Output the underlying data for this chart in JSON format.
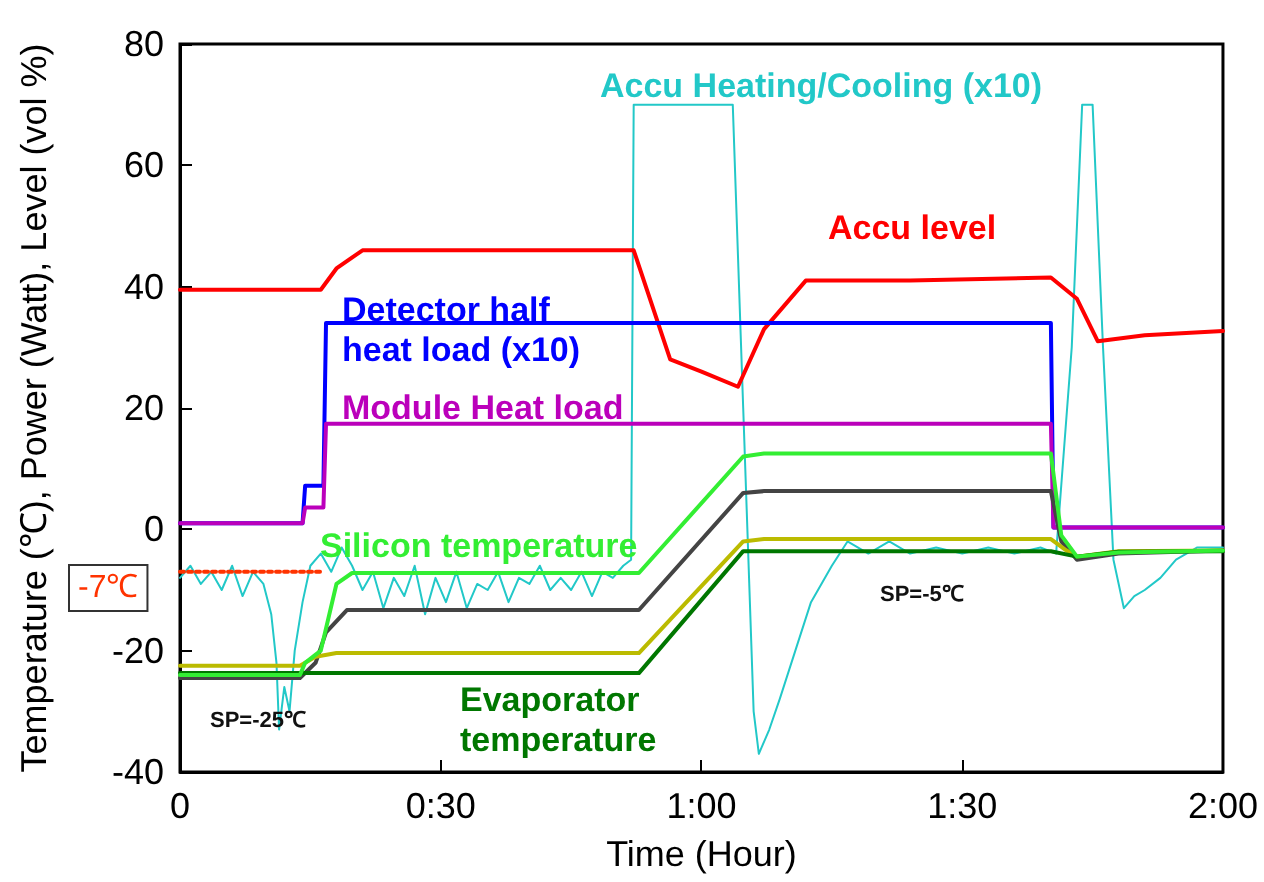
{
  "chart_data": {
    "type": "line",
    "xlabel": "Time (Hour)",
    "ylabel": "Temperature (℃), Power (Watt), Level (vol %)",
    "xlim": [
      0,
      2
    ],
    "ylim": [
      -40,
      80
    ],
    "xticks": [
      0,
      {
        "value": 0.5,
        "label": "0:30"
      },
      {
        "value": 1,
        "label": "1:00"
      },
      {
        "value": 1.5,
        "label": "1:30"
      },
      {
        "value": 2,
        "label": "2:00"
      }
    ],
    "yticks": [
      -40,
      -20,
      0,
      20,
      40,
      60,
      80
    ],
    "grid": false,
    "legend": false,
    "marker": "none",
    "line_style": "solid",
    "annotations": [
      "SP=-25℃",
      "SP=-5℃",
      "-7℃"
    ],
    "series": [
      {
        "name": "Accu Heating/Cooling (x10)",
        "color": "#22c8c8",
        "x": [
          0,
          0.02,
          0.04,
          0.06,
          0.08,
          0.1,
          0.12,
          0.14,
          0.16,
          0.175,
          0.185,
          0.19,
          0.2,
          0.21,
          0.22,
          0.235,
          0.25,
          0.27,
          0.29,
          0.31,
          0.33,
          0.35,
          0.37,
          0.39,
          0.41,
          0.43,
          0.45,
          0.47,
          0.49,
          0.51,
          0.53,
          0.55,
          0.57,
          0.59,
          0.61,
          0.63,
          0.65,
          0.67,
          0.69,
          0.71,
          0.73,
          0.75,
          0.77,
          0.79,
          0.81,
          0.83,
          0.85,
          0.865,
          0.87,
          1.06,
          1.08,
          1.1,
          1.11,
          1.13,
          1.15,
          1.18,
          1.21,
          1.25,
          1.28,
          1.32,
          1.36,
          1.4,
          1.45,
          1.5,
          1.55,
          1.6,
          1.65,
          1.68,
          1.71,
          1.73,
          1.75,
          1.77,
          1.79,
          1.81,
          1.83,
          1.85,
          1.88,
          1.91,
          1.95,
          2
        ],
        "values": [
          -8,
          -6,
          -9,
          -7,
          -10,
          -6,
          -11,
          -7,
          -9,
          -14,
          -22,
          -33,
          -26,
          -30,
          -20,
          -12,
          -6,
          -4,
          -7,
          -3,
          -6,
          -10,
          -7,
          -13,
          -8,
          -11,
          -6,
          -14,
          -8,
          -12,
          -7,
          -13,
          -9,
          -10,
          -7,
          -12,
          -8,
          -9,
          -6,
          -10,
          -8,
          -10,
          -7,
          -11,
          -7,
          -8,
          -6,
          -5,
          70,
          70,
          20,
          -30,
          -37,
          -33,
          -28,
          -20,
          -12,
          -6,
          -2,
          -4,
          -2,
          -4,
          -3,
          -4,
          -3,
          -4,
          -3,
          -4,
          30,
          70,
          70,
          30,
          -5,
          -13,
          -11,
          -10,
          -8,
          -5,
          -3,
          -3
        ]
      },
      {
        "color": "#ff3300",
        "line_style": "dotted",
        "x": [
          0,
          0.27
        ],
        "values": [
          -7,
          -7
        ]
      },
      {
        "name": "Accu level",
        "color": "#ff0000",
        "x": [
          0,
          0.27,
          0.3,
          0.35,
          0.6,
          0.87,
          0.94,
          1.0,
          1.07,
          1.12,
          1.2,
          1.4,
          1.67,
          1.72,
          1.76,
          1.85,
          2
        ],
        "values": [
          39.5,
          39.5,
          43,
          46,
          46,
          46,
          28,
          26,
          23.5,
          33,
          41,
          41,
          41.5,
          38,
          31,
          32,
          32.7
        ]
      },
      {
        "name": "Detector half heat load (x10)",
        "color": "#0000ff",
        "x": [
          0,
          0.235,
          0.24,
          0.275,
          0.28,
          1.67,
          1.675,
          2
        ],
        "values": [
          1,
          1,
          7.2,
          7.2,
          34,
          34,
          0.3,
          0.3
        ]
      },
      {
        "name": "Module Heat load",
        "color": "#bb00bb",
        "x": [
          0,
          0.235,
          0.24,
          0.275,
          0.28,
          1.67,
          1.675,
          2
        ],
        "values": [
          1,
          1,
          3.6,
          3.6,
          17.4,
          17.4,
          0.3,
          0.3
        ]
      },
      {
        "color": "#444444",
        "x": [
          0,
          0.23,
          0.26,
          0.28,
          0.32,
          0.88,
          1.08,
          1.12,
          1.67,
          1.69,
          1.72,
          1.8,
          2
        ],
        "values": [
          -24.5,
          -24.5,
          -22,
          -17,
          -13.3,
          -13.3,
          6,
          6.3,
          6.3,
          -2,
          -5,
          -4,
          -3.5
        ]
      },
      {
        "color": "#bbbb00",
        "x": [
          0,
          0.23,
          0.26,
          0.3,
          0.88,
          1.08,
          1.12,
          1.67,
          1.7,
          1.72,
          1.8,
          2
        ],
        "values": [
          -22.5,
          -22.5,
          -21,
          -20.4,
          -20.4,
          -2,
          -1.6,
          -1.6,
          -3.5,
          -4.5,
          -3.6,
          -3.5
        ]
      },
      {
        "name": "Evaporator temperature",
        "color": "#007700",
        "x": [
          0,
          0.88,
          1.08,
          1.12,
          1.67,
          1.72,
          1.8,
          2
        ],
        "values": [
          -23.7,
          -23.7,
          -3.6,
          -3.6,
          -3.6,
          -4.5,
          -3.7,
          -3.6
        ]
      },
      {
        "name": "Silicon temperature",
        "color": "#33ee33",
        "x": [
          0,
          0.23,
          0.24,
          0.27,
          0.3,
          0.33,
          0.88,
          1.08,
          1.12,
          1.67,
          1.69,
          1.72,
          1.8,
          2
        ],
        "values": [
          -24,
          -24,
          -22,
          -20,
          -9,
          -7.2,
          -7.2,
          12,
          12.5,
          12.5,
          -1,
          -4.5,
          -3.8,
          -3.5
        ]
      }
    ]
  }
}
